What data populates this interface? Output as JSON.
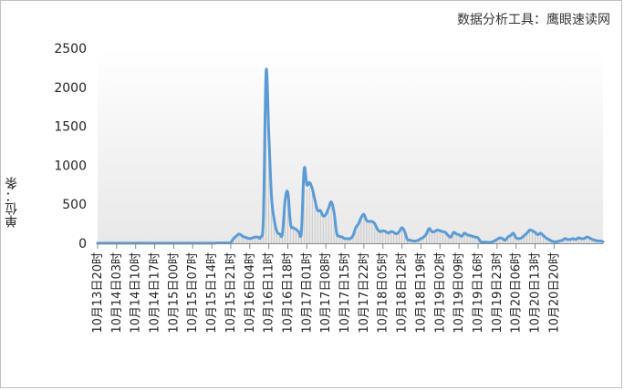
{
  "watermark": "数据分析工具：鹰眼速读网",
  "chart_data": {
    "type": "area",
    "y_unit_label": "单位：条",
    "ylim": [
      0,
      2500
    ],
    "y_ticks": [
      "0",
      "500",
      "1000",
      "1500",
      "2000",
      "2500"
    ],
    "y_tick_values": [
      0,
      500,
      1000,
      1500,
      2000,
      2500
    ],
    "x_tick_labels": [
      "10月13日20时",
      "10月14日03时",
      "10月14日10时",
      "10月14日17时",
      "10月15日00时",
      "10月15日07时",
      "10月15日14时",
      "10月15日21时",
      "10月16日04时",
      "10月16日11时",
      "10月16日18时",
      "10月17日01时",
      "10月17日08时",
      "10月17日15时",
      "10月17日22时",
      "10月18日05时",
      "10月18日12时",
      "10月18日19时",
      "10月19日02时",
      "10月19日09时",
      "10月19日16时",
      "10月19日23时",
      "10月20日06时",
      "10月20日13时",
      "10月20日20时"
    ],
    "x_tick_step_hours": 7,
    "series": [
      {
        "color": "#5b9bd5",
        "values": [
          2,
          2,
          2,
          2,
          2,
          2,
          2,
          2,
          2,
          2,
          2,
          2,
          2,
          2,
          2,
          2,
          2,
          2,
          2,
          2,
          2,
          2,
          2,
          2,
          2,
          2,
          2,
          2,
          2,
          2,
          2,
          2,
          2,
          2,
          2,
          2,
          2,
          2,
          2,
          2,
          2,
          2,
          2,
          2,
          5,
          5,
          5,
          5,
          5,
          10,
          60,
          90,
          120,
          100,
          80,
          70,
          60,
          70,
          80,
          80,
          80,
          300,
          2200,
          1400,
          600,
          300,
          150,
          120,
          120,
          550,
          650,
          250,
          200,
          180,
          150,
          150,
          950,
          750,
          780,
          700,
          550,
          420,
          420,
          350,
          370,
          450,
          530,
          400,
          130,
          90,
          80,
          60,
          60,
          60,
          100,
          200,
          250,
          330,
          370,
          290,
          280,
          280,
          250,
          180,
          150,
          160,
          150,
          130,
          150,
          140,
          120,
          150,
          200,
          150,
          50,
          40,
          30,
          30,
          40,
          60,
          80,
          120,
          190,
          150,
          150,
          170,
          160,
          150,
          140,
          100,
          80,
          140,
          120,
          110,
          90,
          130,
          110,
          100,
          90,
          80,
          70,
          20,
          15,
          15,
          10,
          15,
          30,
          50,
          70,
          60,
          40,
          80,
          100,
          130,
          70,
          60,
          70,
          100,
          130,
          170,
          160,
          140,
          110,
          130,
          100,
          70,
          50,
          30,
          20,
          20,
          30,
          40,
          60,
          50,
          50,
          60,
          50,
          70,
          60,
          60,
          80,
          70,
          50,
          40,
          30,
          30,
          20
        ]
      }
    ]
  }
}
